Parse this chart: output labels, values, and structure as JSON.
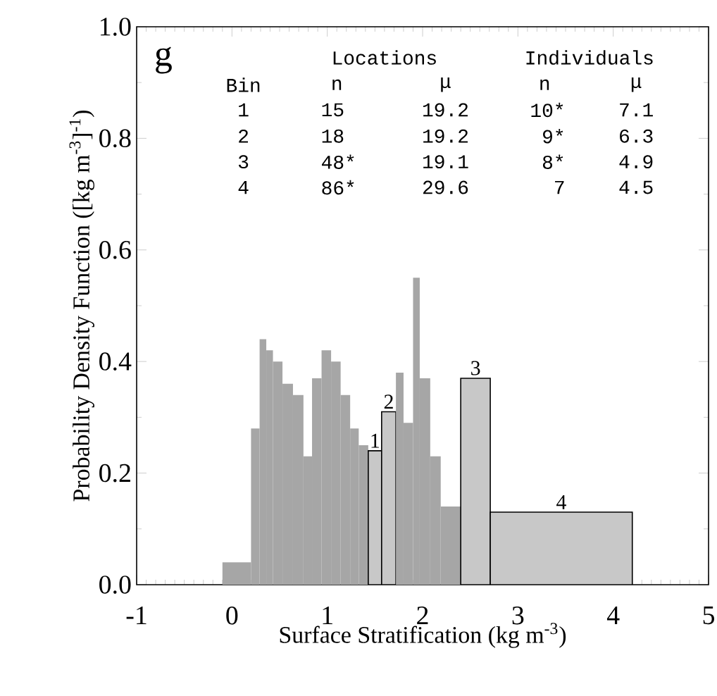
{
  "chart_data": {
    "type": "histogram",
    "xlabel": "Surface Stratification (kg m$^{-3}$)",
    "ylabel": "Probability Density Function ([kg m$^{-3}$]$^{-1}$)",
    "xlim": [
      -1,
      5
    ],
    "xticks": [
      -1,
      0,
      1,
      2,
      3,
      4,
      5
    ],
    "ylim": [
      0,
      1.0
    ],
    "yticks": [
      {
        "value": 0,
        "label": "0.0"
      },
      {
        "value": 0.2,
        "label": "0.2"
      },
      {
        "value": 0.4,
        "label": "0.4"
      },
      {
        "value": 0.6,
        "label": "0.6"
      },
      {
        "value": 0.8,
        "label": "0.8"
      },
      {
        "value": 1.0,
        "label": "1.0"
      }
    ],
    "bins": [
      -0.1,
      0.2,
      0.29,
      0.36,
      0.43,
      0.53,
      0.64,
      0.75,
      0.84,
      0.94,
      1.04,
      1.14,
      1.24,
      1.33,
      1.43,
      1.57,
      1.72,
      1.8,
      1.9,
      1.97,
      2.08,
      2.19,
      2.4,
      2.71,
      4.2
    ],
    "values": [
      0.04,
      0.28,
      0.44,
      0.42,
      0.4,
      0.36,
      0.34,
      0.23,
      0.37,
      0.42,
      0.4,
      0.34,
      0.28,
      0.25,
      0.24,
      0.31,
      0.38,
      0.29,
      0.55,
      0.37,
      0.23,
      0.14,
      0.37,
      0.13
    ],
    "colors": [
      "#a6a6a6",
      "#a6a6a6",
      "#a6a6a6",
      "#a6a6a6",
      "#a6a6a6",
      "#a6a6a6",
      "#a6a6a6",
      "#a6a6a6",
      "#a6a6a6",
      "#a6a6a6",
      "#a6a6a6",
      "#a6a6a6",
      "#a6a6a6",
      "#a6a6a6",
      "#c8c8c8",
      "#c8c8c8",
      "#a6a6a6",
      "#a6a6a6",
      "#a6a6a6",
      "#a6a6a6",
      "#a6a6a6",
      "#a6a6a6",
      "#c8c8c8",
      "#c8c8c8"
    ],
    "annotations": [
      "g",
      "Locations",
      "Individuals",
      "Bin",
      "n",
      "μ",
      "n",
      "μ",
      "1",
      "15",
      "19.2",
      "10*",
      "7.1",
      "2",
      "18",
      "19.2",
      "9*",
      "6.3",
      "3",
      "48*",
      "19.1",
      "8*",
      "4.9",
      "4",
      "86*",
      "29.6",
      "7",
      "4.5",
      {
        "text": "1",
        "x": 1.5,
        "y": 0.24
      },
      {
        "text": "2",
        "x": 1.645,
        "y": 0.31
      },
      {
        "text": "3",
        "x": 2.555,
        "y": 0.37
      },
      {
        "text": "4",
        "x": 3.455,
        "y": 0.13
      }
    ]
  }
}
